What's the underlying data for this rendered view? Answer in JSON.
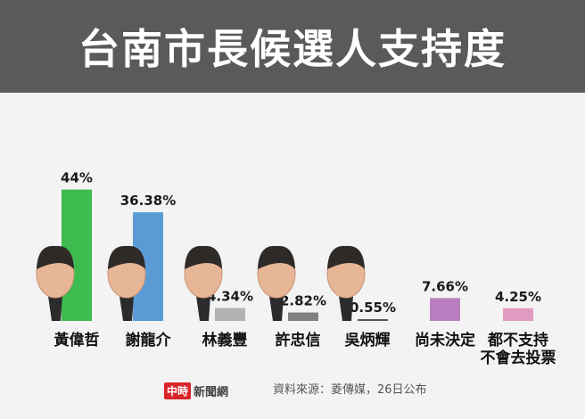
{
  "title": "台南市長候選人支持度",
  "source": "資料來源：菱傳媒，26日公布",
  "logo": {
    "badge": "中時",
    "text": "新聞網"
  },
  "chart_data": {
    "type": "bar",
    "title": "台南市長候選人支持度",
    "ylim": [
      0,
      45
    ],
    "categories": [
      {
        "name": "黃偉哲",
        "value": 44,
        "label": "44%",
        "color": "#3dbb4f",
        "photo": true
      },
      {
        "name": "謝龍介",
        "value": 36.38,
        "label": "36.38%",
        "color": "#5b9bd5",
        "photo": true
      },
      {
        "name": "林義豐",
        "value": 4.34,
        "label": "4.34%",
        "color": "#b3b3b3",
        "photo": true
      },
      {
        "name": "許忠信",
        "value": 2.82,
        "label": "2.82%",
        "color": "#808080",
        "photo": true
      },
      {
        "name": "吳炳輝",
        "value": 0.55,
        "label": "0.55%",
        "color": "#555555",
        "photo": true
      },
      {
        "name": "尚未決定",
        "value": 7.66,
        "label": "7.66%",
        "color": "#b77fbf",
        "photo": false
      },
      {
        "name": "都不支持\n不會去投票",
        "value": 4.25,
        "label": "4.25%",
        "color": "#e09cc0",
        "photo": false
      }
    ]
  }
}
